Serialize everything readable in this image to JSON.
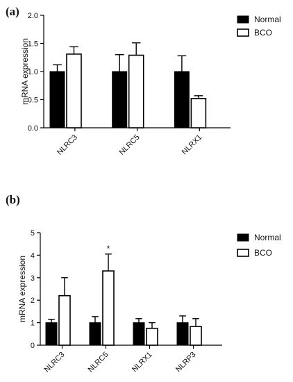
{
  "chart_data": [
    {
      "panel_label": "(a)",
      "type": "bar",
      "categories": [
        "NLRC3",
        "NLRC5",
        "NLRX1"
      ],
      "series": [
        {
          "name": "Normal",
          "values": [
            1.0,
            1.0,
            1.0
          ],
          "errors": [
            0.12,
            0.3,
            0.28
          ],
          "fill": "#000000"
        },
        {
          "name": "BCO",
          "values": [
            1.31,
            1.29,
            0.52
          ],
          "errors": [
            0.13,
            0.22,
            0.05
          ],
          "fill": "#ffffff"
        }
      ],
      "ylabel": "mRNA expression",
      "ylim": [
        0,
        2.0
      ],
      "yticks": [
        "0.0",
        "0.5",
        "1.0",
        "1.5",
        "2.0"
      ],
      "significance": [],
      "legend_position": "top-right",
      "grid": false
    },
    {
      "panel_label": "(b)",
      "type": "bar",
      "categories": [
        "NLRC3",
        "NLRC5",
        "NLRX1",
        "NLRP3"
      ],
      "series": [
        {
          "name": "Normal",
          "values": [
            1.0,
            1.0,
            1.0,
            1.0
          ],
          "errors": [
            0.15,
            0.27,
            0.18,
            0.3
          ],
          "fill": "#000000"
        },
        {
          "name": "BCO",
          "values": [
            2.2,
            3.3,
            0.75,
            0.83
          ],
          "errors": [
            0.8,
            0.75,
            0.25,
            0.35
          ],
          "fill": "#ffffff"
        }
      ],
      "ylabel": "mRNA expression",
      "ylim": [
        0,
        5
      ],
      "yticks": [
        "0",
        "1",
        "2",
        "3",
        "4",
        "5"
      ],
      "significance": [
        {
          "category_index": 1,
          "series_index": 1,
          "text": "*"
        }
      ],
      "legend_position": "top-right",
      "grid": false
    }
  ]
}
